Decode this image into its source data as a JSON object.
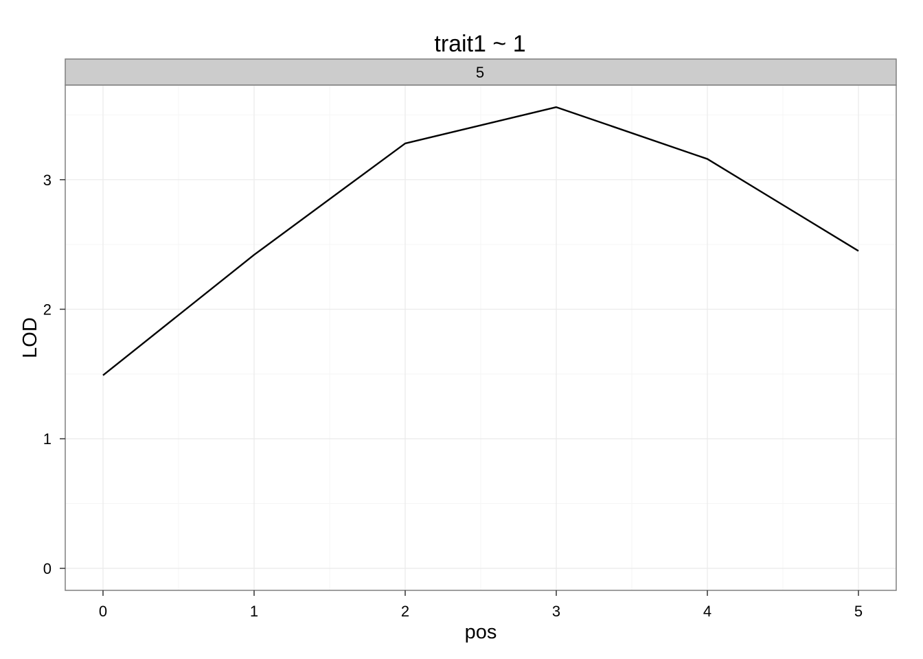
{
  "chart_data": {
    "type": "line",
    "title": "trait1 ~ 1",
    "facet_label": "5",
    "xlabel": "pos",
    "ylabel": "LOD",
    "x": [
      0,
      1,
      2,
      3,
      4,
      5
    ],
    "series": [
      {
        "values": [
          1.49,
          2.42,
          3.28,
          3.56,
          3.16,
          2.45
        ]
      }
    ],
    "xticks": [
      0,
      1,
      2,
      3,
      4,
      5
    ],
    "yticks": [
      0,
      1,
      2,
      3
    ],
    "xlim": [
      -0.25,
      5.25
    ],
    "ylim": [
      -0.17,
      3.73
    ],
    "grid": true,
    "colors": {
      "line": "#000000",
      "strip": "#cccccc",
      "grid_major": "#ebebeb",
      "grid_minor": "#f5f5f5",
      "border": "#7f7f7f"
    }
  }
}
